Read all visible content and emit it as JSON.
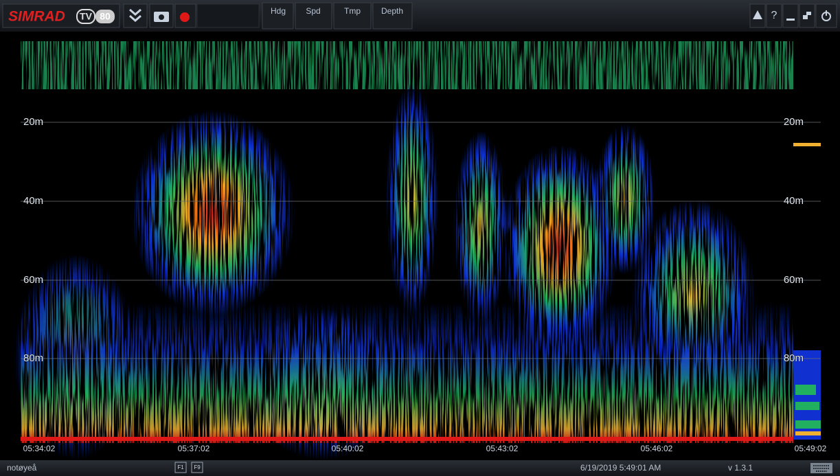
{
  "toolbar": {
    "brand": "SIMRAD",
    "model": "TV",
    "model_number": "80",
    "tabs": [
      "Hdg",
      "Spd",
      "Tmp",
      "Depth"
    ],
    "help": "?"
  },
  "echogram": {
    "depth_labels": [
      "20m",
      "40m",
      "60m",
      "80m"
    ],
    "time_labels": [
      "05:34:02",
      "05:37:02",
      "05:40:02",
      "05:43:02",
      "05:46:02",
      "05:49:02"
    ]
  },
  "status_bar": {
    "user": "notøyeå",
    "function_keys": [
      "F1",
      "F9"
    ],
    "datetime": "6/19/2019 5:49:01 AM",
    "version": "v 1.3.1"
  }
}
